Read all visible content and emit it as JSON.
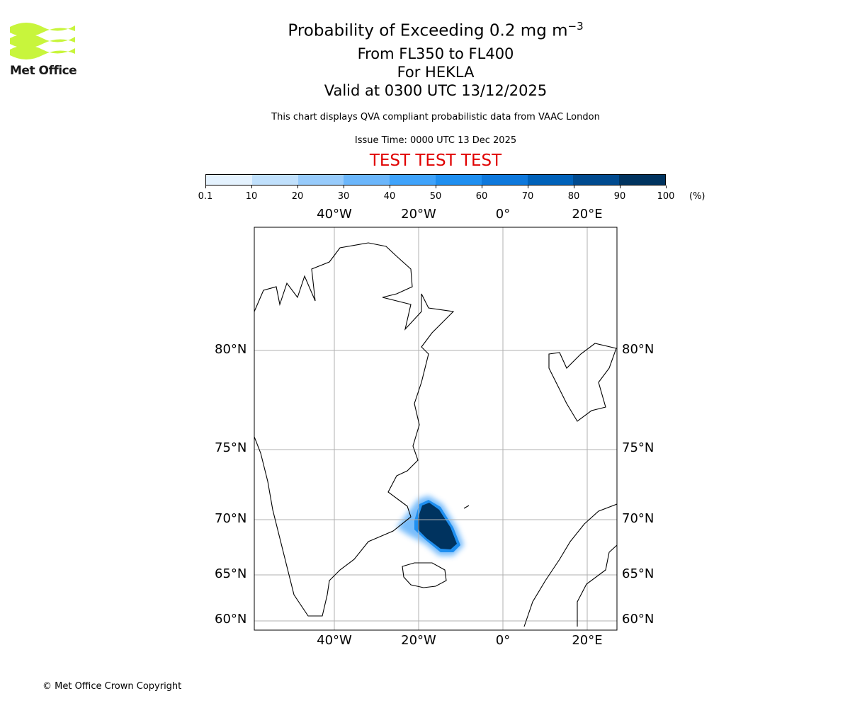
{
  "title": {
    "main": "Probability of Exceeding 0.2 mg m",
    "main_sup": "−3",
    "levels": "From FL350 to FL400",
    "volcano": "For HEKLA",
    "valid": "Valid at 0300 UTC 13/12/2025",
    "description": "This chart displays QVA compliant probabilistic data from VAAC London",
    "issue_time": "Issue Time: 0000 UTC 13 Dec 2025",
    "test_banner": "TEST TEST TEST"
  },
  "logo": {
    "text": "Met Office",
    "color": "#c8f53c"
  },
  "colorbar": {
    "unit": "(%)",
    "ticks": [
      "0.1",
      "10",
      "20",
      "30",
      "40",
      "50",
      "60",
      "70",
      "80",
      "90",
      "100"
    ],
    "colors": [
      "#e4f2fe",
      "#c0e0fc",
      "#97cbfb",
      "#6bb6fb",
      "#3fa3fb",
      "#1f8ff0",
      "#0e78dc",
      "#0061b9",
      "#004a8f",
      "#00335f"
    ]
  },
  "map": {
    "lon_labels": [
      "40°W",
      "20°W",
      "0°",
      "20°E"
    ],
    "lat_labels": [
      "80°N",
      "75°N",
      "70°N",
      "65°N",
      "60°N"
    ]
  },
  "footer": {
    "copyright": "© Met Office Crown Copyright"
  }
}
